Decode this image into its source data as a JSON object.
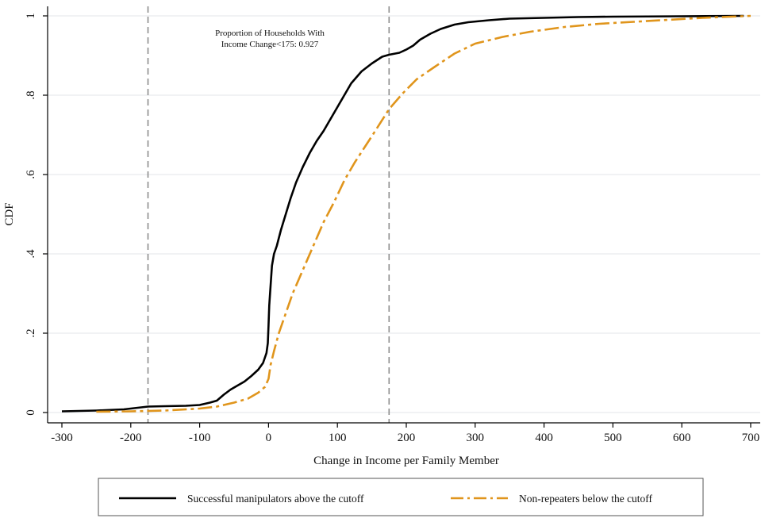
{
  "chart_data": {
    "type": "line",
    "title": "",
    "xlabel": "Change in Income per Family Member",
    "ylabel": "CDF",
    "xlim": [
      -300,
      700
    ],
    "ylim": [
      0,
      1
    ],
    "x_ticks": [
      -300,
      -200,
      -100,
      0,
      100,
      200,
      300,
      400,
      500,
      600,
      700
    ],
    "x_tick_labels": [
      "-300",
      "-200",
      "-100",
      "0",
      "100",
      "200",
      "300",
      "400",
      "500",
      "600",
      "700"
    ],
    "y_ticks": [
      0,
      0.2,
      0.4,
      0.6,
      0.8,
      1
    ],
    "y_tick_labels": [
      "0",
      ".2",
      ".4",
      ".6",
      ".8",
      "1"
    ],
    "grid": "horizontal",
    "legend_position": "bottom",
    "reference_lines_x": [
      -175,
      175
    ],
    "annotation": {
      "line1": "Proportion of Households With",
      "line2": "Income Change<175:  0.927"
    },
    "series": [
      {
        "name": "Successful manipulators above the cutoff",
        "color": "#000000",
        "style": "solid",
        "points": [
          [
            -300,
            0.003
          ],
          [
            -250,
            0.005
          ],
          [
            -210,
            0.008
          ],
          [
            -190,
            0.012
          ],
          [
            -175,
            0.015
          ],
          [
            -150,
            0.016
          ],
          [
            -120,
            0.017
          ],
          [
            -100,
            0.019
          ],
          [
            -85,
            0.025
          ],
          [
            -75,
            0.03
          ],
          [
            -65,
            0.045
          ],
          [
            -55,
            0.058
          ],
          [
            -45,
            0.068
          ],
          [
            -35,
            0.078
          ],
          [
            -25,
            0.092
          ],
          [
            -15,
            0.108
          ],
          [
            -8,
            0.125
          ],
          [
            -3,
            0.15
          ],
          [
            -1,
            0.175
          ],
          [
            0,
            0.22
          ],
          [
            1,
            0.27
          ],
          [
            3,
            0.32
          ],
          [
            5,
            0.37
          ],
          [
            8,
            0.4
          ],
          [
            12,
            0.42
          ],
          [
            18,
            0.46
          ],
          [
            25,
            0.5
          ],
          [
            32,
            0.54
          ],
          [
            40,
            0.58
          ],
          [
            50,
            0.62
          ],
          [
            60,
            0.655
          ],
          [
            70,
            0.685
          ],
          [
            80,
            0.71
          ],
          [
            90,
            0.74
          ],
          [
            100,
            0.77
          ],
          [
            110,
            0.8
          ],
          [
            120,
            0.83
          ],
          [
            135,
            0.86
          ],
          [
            150,
            0.88
          ],
          [
            165,
            0.897
          ],
          [
            175,
            0.902
          ],
          [
            190,
            0.907
          ],
          [
            200,
            0.915
          ],
          [
            210,
            0.925
          ],
          [
            220,
            0.94
          ],
          [
            235,
            0.955
          ],
          [
            250,
            0.967
          ],
          [
            270,
            0.978
          ],
          [
            290,
            0.984
          ],
          [
            320,
            0.989
          ],
          [
            350,
            0.993
          ],
          [
            400,
            0.995
          ],
          [
            450,
            0.997
          ],
          [
            500,
            0.998
          ],
          [
            600,
            0.999
          ],
          [
            690,
            1.0
          ]
        ]
      },
      {
        "name": "Non-repeaters below the cutoff",
        "color": "#e0951c",
        "style": "dashed",
        "points": [
          [
            -250,
            0.002
          ],
          [
            -200,
            0.003
          ],
          [
            -150,
            0.005
          ],
          [
            -100,
            0.01
          ],
          [
            -75,
            0.015
          ],
          [
            -50,
            0.025
          ],
          [
            -30,
            0.035
          ],
          [
            -15,
            0.05
          ],
          [
            -5,
            0.065
          ],
          [
            0,
            0.085
          ],
          [
            3,
            0.12
          ],
          [
            8,
            0.155
          ],
          [
            15,
            0.2
          ],
          [
            25,
            0.25
          ],
          [
            35,
            0.3
          ],
          [
            50,
            0.36
          ],
          [
            65,
            0.42
          ],
          [
            80,
            0.48
          ],
          [
            95,
            0.53
          ],
          [
            110,
            0.585
          ],
          [
            125,
            0.63
          ],
          [
            140,
            0.67
          ],
          [
            155,
            0.71
          ],
          [
            175,
            0.765
          ],
          [
            195,
            0.805
          ],
          [
            215,
            0.84
          ],
          [
            240,
            0.87
          ],
          [
            270,
            0.905
          ],
          [
            300,
            0.93
          ],
          [
            340,
            0.947
          ],
          [
            380,
            0.96
          ],
          [
            430,
            0.972
          ],
          [
            480,
            0.98
          ],
          [
            530,
            0.985
          ],
          [
            580,
            0.99
          ],
          [
            630,
            0.995
          ],
          [
            700,
            1.0
          ]
        ]
      }
    ]
  }
}
